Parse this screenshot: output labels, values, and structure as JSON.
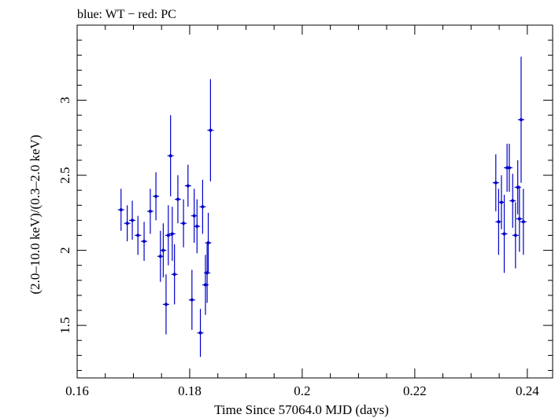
{
  "chart_data": {
    "type": "scatter",
    "title": "blue: WT − red: PC",
    "xlabel": "Time Since 57064.0 MJD (days)",
    "ylabel": "(2.0–10.0 keV)/(0.3–2.0 keV)",
    "xlim": [
      0.16,
      0.2445
    ],
    "ylim": [
      1.15,
      3.5
    ],
    "x_ticks": [
      0.16,
      0.18,
      0.2,
      0.22,
      0.24
    ],
    "x_tick_labels": [
      "0.16",
      "0.18",
      "0.2",
      "0.22",
      "0.24"
    ],
    "y_ticks": [
      1.5,
      2,
      2.5,
      3
    ],
    "y_tick_labels": [
      "1.5",
      "2",
      "2.5",
      "3"
    ],
    "grid": false,
    "legend": "none",
    "series": [
      {
        "color": "#0000cc",
        "points": [
          {
            "x": 0.1678,
            "y": 2.27,
            "yerr": 0.14
          },
          {
            "x": 0.1689,
            "y": 2.18,
            "yerr": 0.12
          },
          {
            "x": 0.1698,
            "y": 2.2,
            "yerr": 0.13
          },
          {
            "x": 0.1708,
            "y": 2.1,
            "yerr": 0.13
          },
          {
            "x": 0.1719,
            "y": 2.06,
            "yerr": 0.13
          },
          {
            "x": 0.173,
            "y": 2.26,
            "yerr": 0.15
          },
          {
            "x": 0.174,
            "y": 2.36,
            "yerr": 0.16
          },
          {
            "x": 0.1748,
            "y": 1.96,
            "yerr": 0.17
          },
          {
            "x": 0.1753,
            "y": 2.0,
            "yerr": 0.18
          },
          {
            "x": 0.1758,
            "y": 1.64,
            "yerr": 0.2
          },
          {
            "x": 0.1762,
            "y": 2.1,
            "yerr": 0.2
          },
          {
            "x": 0.1766,
            "y": 2.63,
            "yerr": 0.27
          },
          {
            "x": 0.1769,
            "y": 2.11,
            "yerr": 0.18
          },
          {
            "x": 0.1773,
            "y": 1.84,
            "yerr": 0.2
          },
          {
            "x": 0.1779,
            "y": 2.34,
            "yerr": 0.16
          },
          {
            "x": 0.1789,
            "y": 2.18,
            "yerr": 0.16
          },
          {
            "x": 0.1797,
            "y": 2.43,
            "yerr": 0.14
          },
          {
            "x": 0.1804,
            "y": 1.67,
            "yerr": 0.2
          },
          {
            "x": 0.1808,
            "y": 2.23,
            "yerr": 0.18
          },
          {
            "x": 0.1813,
            "y": 2.16,
            "yerr": 0.18
          },
          {
            "x": 0.1819,
            "y": 1.45,
            "yerr": 0.16
          },
          {
            "x": 0.1823,
            "y": 2.29,
            "yerr": 0.18
          },
          {
            "x": 0.1828,
            "y": 1.77,
            "yerr": 0.2
          },
          {
            "x": 0.1831,
            "y": 1.85,
            "yerr": 0.2
          },
          {
            "x": 0.1833,
            "y": 2.05,
            "yerr": 0.2
          },
          {
            "x": 0.1837,
            "y": 2.8,
            "yerr": 0.34
          },
          {
            "x": 0.2344,
            "y": 2.45,
            "yerr": 0.19
          },
          {
            "x": 0.2349,
            "y": 2.19,
            "yerr": 0.22
          },
          {
            "x": 0.2354,
            "y": 2.32,
            "yerr": 0.18
          },
          {
            "x": 0.2359,
            "y": 2.11,
            "yerr": 0.26
          },
          {
            "x": 0.2364,
            "y": 2.55,
            "yerr": 0.16
          },
          {
            "x": 0.2368,
            "y": 2.55,
            "yerr": 0.16
          },
          {
            "x": 0.2374,
            "y": 2.33,
            "yerr": 0.18
          },
          {
            "x": 0.2379,
            "y": 2.1,
            "yerr": 0.22
          },
          {
            "x": 0.2383,
            "y": 2.42,
            "yerr": 0.18
          },
          {
            "x": 0.2386,
            "y": 2.21,
            "yerr": 0.22
          },
          {
            "x": 0.2389,
            "y": 2.87,
            "yerr": 0.42
          },
          {
            "x": 0.2393,
            "y": 2.19,
            "yerr": 0.22
          }
        ]
      }
    ]
  }
}
